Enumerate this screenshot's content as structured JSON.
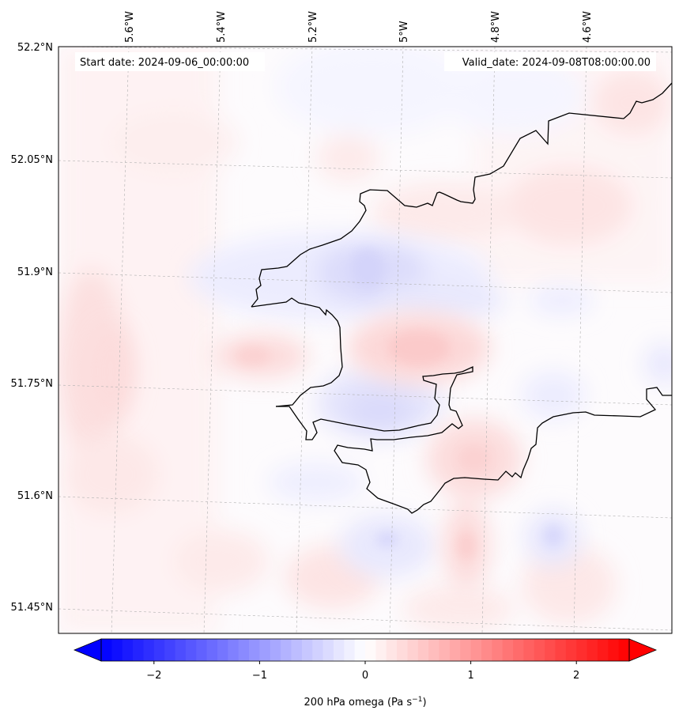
{
  "header": {
    "start_date": "Start date: 2024-09-06_00:00:00",
    "valid_date": "Valid_date: 2024-09-08T08:00:00.00"
  },
  "axes": {
    "lon_labels": [
      "5.6°W",
      "5.4°W",
      "5.2°W",
      "5°W",
      "4.8°W",
      "4.6°W"
    ],
    "lat_labels": [
      "52.2°N",
      "52.05°N",
      "51.9°N",
      "51.75°N",
      "51.6°N",
      "51.45°N"
    ]
  },
  "field": {
    "variable_label": "200 hPa omega (Pa s",
    "unit_superscript": "−1",
    "unit_close": ")",
    "colormap": "bwr",
    "range": [
      -2.5,
      2.5
    ],
    "colorbar_ticks": [
      {
        "value": -2,
        "label": "−2"
      },
      {
        "value": -1,
        "label": "−1"
      },
      {
        "value": 0,
        "label": "0"
      },
      {
        "value": 1,
        "label": "1"
      },
      {
        "value": 2,
        "label": "2"
      }
    ],
    "features": [
      {
        "kind": "ascent",
        "value": -0.5
      },
      {
        "kind": "ascent",
        "value": -0.4
      },
      {
        "kind": "ascent",
        "value": -0.3
      },
      {
        "kind": "subsidence",
        "value": 0.6
      },
      {
        "kind": "subsidence",
        "value": 0.4
      },
      {
        "kind": "subsidence",
        "value": 0.5
      },
      {
        "kind": "subsidence",
        "value": 0.4
      }
    ]
  },
  "colors": {
    "min_color": "#0000ff",
    "mid_color": "#ffffff",
    "max_color": "#ff0000",
    "coastline": "#000000",
    "gridline": "#b0b0b0"
  }
}
